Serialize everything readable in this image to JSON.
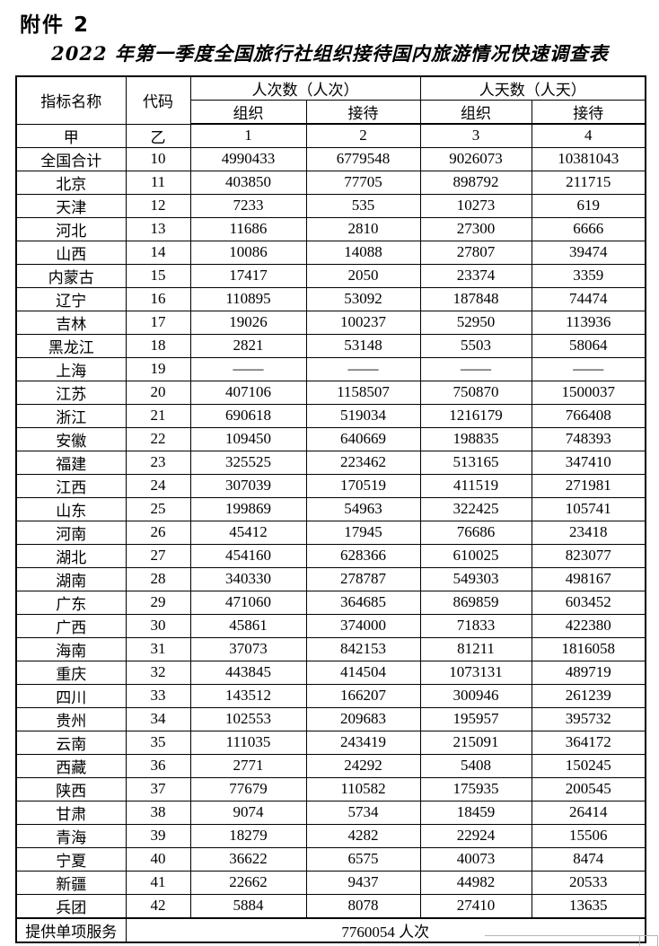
{
  "page": {
    "attachment_label": "附件 2",
    "title": "2022 年第一季度全国旅行社组织接待国内旅游情况快速调查表"
  },
  "colors": {
    "border": "#000000",
    "page_background": "#ffffff",
    "boundary_mark": "#b4b4b4"
  },
  "table": {
    "header": {
      "indicator": "指标名称",
      "code": "代码",
      "person_times_group": "人次数（人次）",
      "person_days_group": "人天数（人天）",
      "subheaders": [
        "组织",
        "接待",
        "组织",
        "接待"
      ],
      "row_label": "甲",
      "code_label": "乙",
      "col_numbers": [
        "1",
        "2",
        "3",
        "4"
      ]
    },
    "rows": [
      {
        "name": "全国合计",
        "code": "10",
        "values": [
          "4990433",
          "6779548",
          "9026073",
          "10381043"
        ]
      },
      {
        "name": "北京",
        "code": "11",
        "values": [
          "403850",
          "77705",
          "898792",
          "211715"
        ]
      },
      {
        "name": "天津",
        "code": "12",
        "values": [
          "7233",
          "535",
          "10273",
          "619"
        ]
      },
      {
        "name": "河北",
        "code": "13",
        "values": [
          "11686",
          "2810",
          "27300",
          "6666"
        ]
      },
      {
        "name": "山西",
        "code": "14",
        "values": [
          "10086",
          "14088",
          "27807",
          "39474"
        ]
      },
      {
        "name": "内蒙古",
        "code": "15",
        "values": [
          "17417",
          "2050",
          "23374",
          "3359"
        ]
      },
      {
        "name": "辽宁",
        "code": "16",
        "values": [
          "110895",
          "53092",
          "187848",
          "74474"
        ]
      },
      {
        "name": "吉林",
        "code": "17",
        "values": [
          "19026",
          "100237",
          "52950",
          "113936"
        ]
      },
      {
        "name": "黑龙江",
        "code": "18",
        "values": [
          "2821",
          "53148",
          "5503",
          "58064"
        ]
      },
      {
        "name": "上海",
        "code": "19",
        "values": [
          "——",
          "——",
          "——",
          "——"
        ]
      },
      {
        "name": "江苏",
        "code": "20",
        "values": [
          "407106",
          "1158507",
          "750870",
          "1500037"
        ]
      },
      {
        "name": "浙江",
        "code": "21",
        "values": [
          "690618",
          "519034",
          "1216179",
          "766408"
        ]
      },
      {
        "name": "安徽",
        "code": "22",
        "values": [
          "109450",
          "640669",
          "198835",
          "748393"
        ]
      },
      {
        "name": "福建",
        "code": "23",
        "values": [
          "325525",
          "223462",
          "513165",
          "347410"
        ]
      },
      {
        "name": "江西",
        "code": "24",
        "values": [
          "307039",
          "170519",
          "411519",
          "271981"
        ]
      },
      {
        "name": "山东",
        "code": "25",
        "values": [
          "199869",
          "54963",
          "322425",
          "105741"
        ]
      },
      {
        "name": "河南",
        "code": "26",
        "values": [
          "45412",
          "17945",
          "76686",
          "23418"
        ]
      },
      {
        "name": "湖北",
        "code": "27",
        "values": [
          "454160",
          "628366",
          "610025",
          "823077"
        ]
      },
      {
        "name": "湖南",
        "code": "28",
        "values": [
          "340330",
          "278787",
          "549303",
          "498167"
        ]
      },
      {
        "name": "广东",
        "code": "29",
        "values": [
          "471060",
          "364685",
          "869859",
          "603452"
        ]
      },
      {
        "name": "广西",
        "code": "30",
        "values": [
          "45861",
          "374000",
          "71833",
          "422380"
        ]
      },
      {
        "name": "海南",
        "code": "31",
        "values": [
          "37073",
          "842153",
          "81211",
          "1816058"
        ]
      },
      {
        "name": "重庆",
        "code": "32",
        "values": [
          "443845",
          "414504",
          "1073131",
          "489719"
        ]
      },
      {
        "name": "四川",
        "code": "33",
        "values": [
          "143512",
          "166207",
          "300946",
          "261239"
        ]
      },
      {
        "name": "贵州",
        "code": "34",
        "values": [
          "102553",
          "209683",
          "195957",
          "395732"
        ]
      },
      {
        "name": "云南",
        "code": "35",
        "values": [
          "111035",
          "243419",
          "215091",
          "364172"
        ]
      },
      {
        "name": "西藏",
        "code": "36",
        "values": [
          "2771",
          "24292",
          "5408",
          "150245"
        ]
      },
      {
        "name": "陕西",
        "code": "37",
        "values": [
          "77679",
          "110582",
          "175935",
          "200545"
        ]
      },
      {
        "name": "甘肃",
        "code": "38",
        "values": [
          "9074",
          "5734",
          "18459",
          "26414"
        ]
      },
      {
        "name": "青海",
        "code": "39",
        "values": [
          "18279",
          "4282",
          "22924",
          "15506"
        ]
      },
      {
        "name": "宁夏",
        "code": "40",
        "values": [
          "36622",
          "6575",
          "40073",
          "8474"
        ]
      },
      {
        "name": "新疆",
        "code": "41",
        "values": [
          "22662",
          "9437",
          "44982",
          "20533"
        ]
      },
      {
        "name": "兵团",
        "code": "42",
        "values": [
          "5884",
          "8078",
          "27410",
          "13635"
        ]
      }
    ],
    "footer": {
      "label": "提供单项服务",
      "value": "7760054  人次"
    }
  }
}
